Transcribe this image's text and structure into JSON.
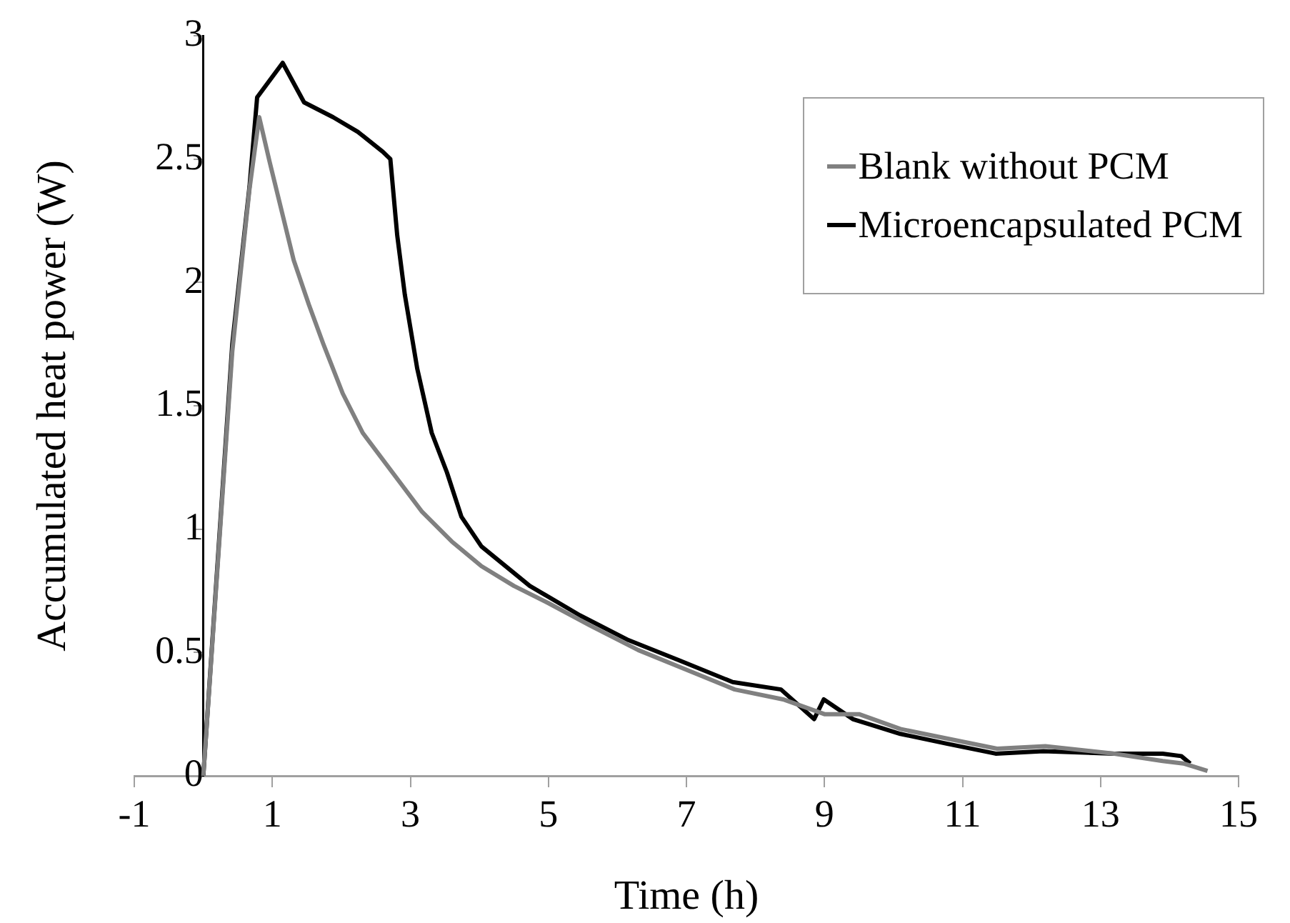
{
  "chart_data": {
    "type": "line",
    "xlabel": "Time (h)",
    "ylabel": "Accumulated heat power (W)",
    "xlim": [
      -1,
      15
    ],
    "xticks": [
      -1,
      1,
      3,
      5,
      7,
      9,
      11,
      13,
      15
    ],
    "ylim": [
      0,
      3
    ],
    "yticks": [
      0,
      0.5,
      1,
      1.5,
      2,
      2.5,
      3
    ],
    "grid": false,
    "legend": "top right",
    "marker": "none",
    "line_style": "solid",
    "series": [
      {
        "name": "Blank without PCM",
        "color": "#808080",
        "x": [
          0,
          0.42,
          0.67,
          0.81,
          0.96,
          1.17,
          1.31,
          1.53,
          1.74,
          2.02,
          2.31,
          2.74,
          3.17,
          3.6,
          4.03,
          4.5,
          5.0,
          5.6,
          6.3,
          7.0,
          7.7,
          8.4,
          9.0,
          9.5,
          10.1,
          10.8,
          11.5,
          12.2,
          13.2,
          13.9,
          14.2,
          14.55
        ],
        "values": [
          0,
          1.72,
          2.38,
          2.67,
          2.49,
          2.25,
          2.09,
          1.91,
          1.75,
          1.55,
          1.39,
          1.23,
          1.07,
          0.95,
          0.85,
          0.77,
          0.7,
          0.61,
          0.51,
          0.43,
          0.35,
          0.31,
          0.25,
          0.25,
          0.19,
          0.15,
          0.11,
          0.12,
          0.09,
          0.06,
          0.05,
          0.02
        ]
      },
      {
        "name": "Microencapsulated PCM",
        "color": "#000000",
        "x": [
          0,
          0.42,
          0.67,
          0.78,
          1.15,
          1.46,
          1.88,
          2.24,
          2.6,
          2.71,
          2.81,
          2.92,
          3.1,
          3.31,
          3.53,
          3.74,
          4.03,
          4.73,
          5.46,
          6.16,
          6.88,
          7.67,
          8.37,
          8.85,
          8.99,
          9.41,
          10.1,
          10.78,
          11.48,
          12.17,
          13.2,
          13.9,
          14.17,
          14.3
        ],
        "values": [
          0,
          1.75,
          2.39,
          2.75,
          2.89,
          2.73,
          2.67,
          2.61,
          2.53,
          2.5,
          2.19,
          1.95,
          1.65,
          1.39,
          1.23,
          1.05,
          0.93,
          0.77,
          0.65,
          0.55,
          0.47,
          0.38,
          0.35,
          0.23,
          0.31,
          0.23,
          0.17,
          0.13,
          0.09,
          0.1,
          0.09,
          0.09,
          0.08,
          0.05
        ]
      }
    ]
  }
}
